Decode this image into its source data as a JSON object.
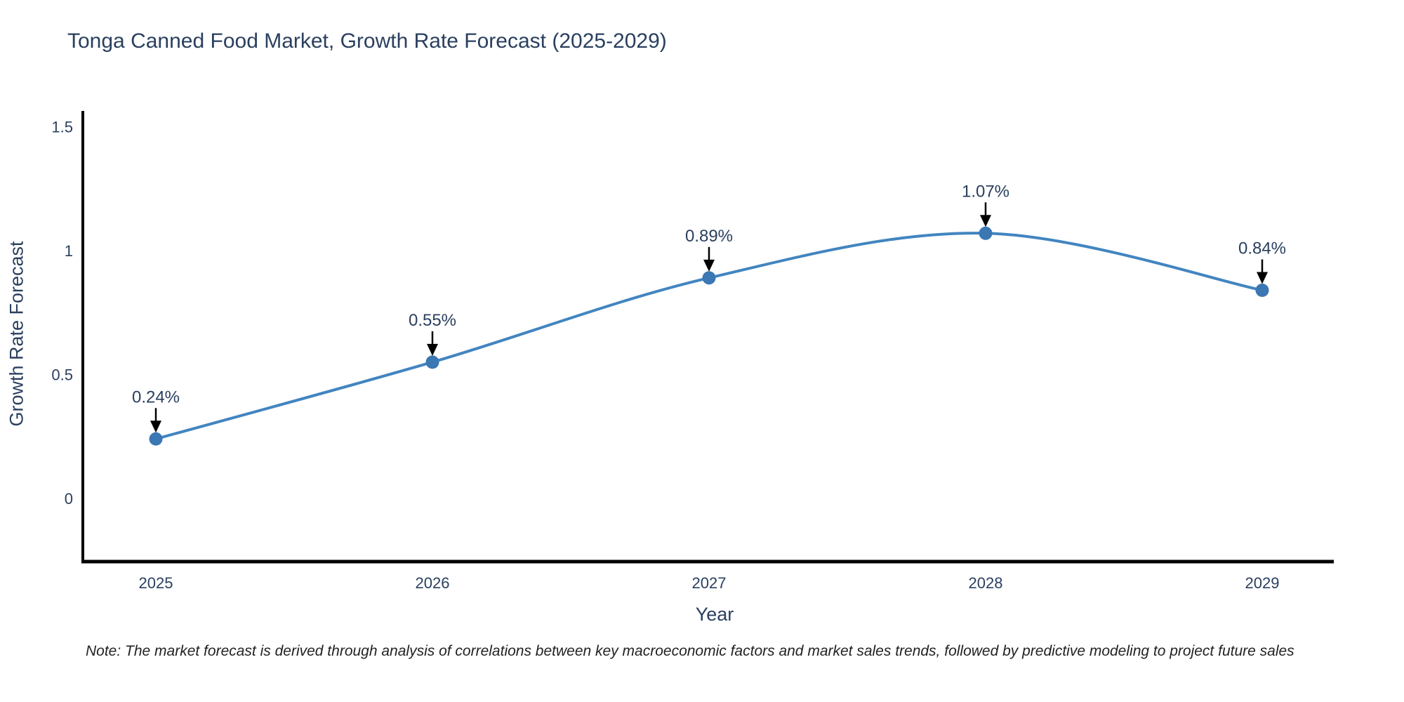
{
  "title": "Tonga Canned Food Market, Growth Rate Forecast (2025-2029)",
  "note": "Note: The market forecast is derived through analysis of correlations between key macroeconomic factors and market sales trends, followed by predictive modeling to project future sales",
  "colors": {
    "background": "#ffffff",
    "title_text": "#2a3f5f",
    "tick_text": "#2a3f5f",
    "annotation_text": "#2a3f5f",
    "note_text": "#222222",
    "axis_line": "#000000",
    "series_line": "#4285c0",
    "marker_fill": "#3a77b3",
    "annotation_arrow": "#000000"
  },
  "chart_data": {
    "type": "line",
    "title": "Tonga Canned Food Market, Growth Rate Forecast (2025-2029)",
    "xlabel": "Year",
    "ylabel": "Growth Rate Forecast",
    "categories": [
      "2025",
      "2026",
      "2027",
      "2028",
      "2029"
    ],
    "values": [
      0.24,
      0.55,
      0.89,
      1.07,
      0.84
    ],
    "point_labels": [
      "0.24%",
      "0.55%",
      "0.89%",
      "1.07%",
      "0.84%"
    ],
    "yticks": [
      0,
      0.5,
      1,
      1.5
    ],
    "ylim": [
      -0.26,
      1.56
    ],
    "grid": false,
    "legend": false,
    "line_shape": "spline",
    "marker": "circle",
    "annotations": "value labels with downward arrows above each point"
  }
}
